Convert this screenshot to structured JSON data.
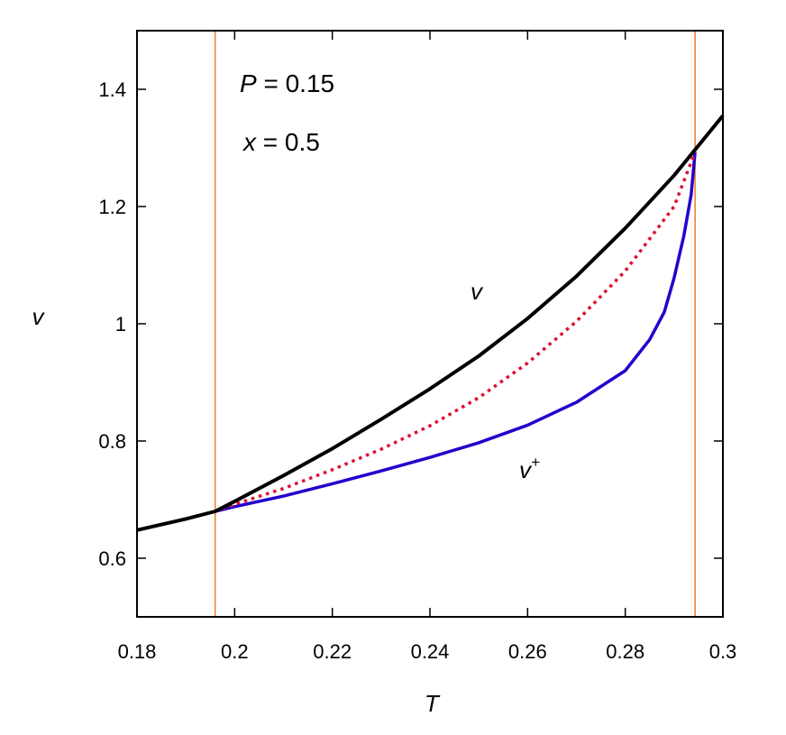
{
  "chart_data": {
    "type": "line",
    "xlabel": "T",
    "ylabel": "v",
    "xlim": [
      0.18,
      0.3
    ],
    "ylim": [
      0.5,
      1.5
    ],
    "x_ticks": [
      0.18,
      0.2,
      0.22,
      0.24,
      0.26,
      0.28,
      0.3
    ],
    "x_tick_labels": [
      "0.18",
      "0.2",
      "0.22",
      "0.24",
      "0.26",
      "0.28",
      "0.3"
    ],
    "y_ticks": [
      0.6,
      0.8,
      1.0,
      1.2,
      1.4
    ],
    "y_tick_labels": [
      "0.6",
      "0.8",
      "1",
      "1.2",
      "1.4"
    ],
    "grid": false,
    "annotations": {
      "p_var": "P",
      "p_eq": " = 0.15",
      "x_var": "x",
      "x_eq": " = 0.5",
      "v_label": "v",
      "vplus_base": "v",
      "vplus_sup": "+"
    },
    "vertical_lines": [
      0.196,
      0.2943
    ],
    "colors": {
      "v": "#000000",
      "v_plus": "#2200cc",
      "dotted": "#dd1133",
      "vertical": "#f08030"
    },
    "series": [
      {
        "style": "solid",
        "x": [
          0.18,
          0.19,
          0.196,
          0.2,
          0.21,
          0.22,
          0.23,
          0.24,
          0.25,
          0.26,
          0.27,
          0.28,
          0.29,
          0.3
        ],
        "values": [
          0.648,
          0.667,
          0.68,
          0.697,
          0.741,
          0.787,
          0.837,
          0.889,
          0.945,
          1.009,
          1.081,
          1.163,
          1.253,
          1.355
        ]
      },
      {
        "style": "solid",
        "x": [
          0.196,
          0.2,
          0.21,
          0.22,
          0.23,
          0.24,
          0.25,
          0.26,
          0.27,
          0.28,
          0.285,
          0.288,
          0.29,
          0.292,
          0.2935,
          0.2943
        ],
        "values": [
          0.68,
          0.688,
          0.706,
          0.727,
          0.749,
          0.772,
          0.797,
          0.827,
          0.866,
          0.92,
          0.973,
          1.02,
          1.078,
          1.15,
          1.22,
          1.293
        ]
      },
      {
        "style": "dotted",
        "x": [
          0.196,
          0.2,
          0.21,
          0.22,
          0.23,
          0.24,
          0.25,
          0.26,
          0.27,
          0.28,
          0.29,
          0.2943
        ],
        "values": [
          0.68,
          0.692,
          0.719,
          0.751,
          0.786,
          0.826,
          0.874,
          0.933,
          1.004,
          1.09,
          1.2,
          1.293
        ]
      }
    ]
  }
}
